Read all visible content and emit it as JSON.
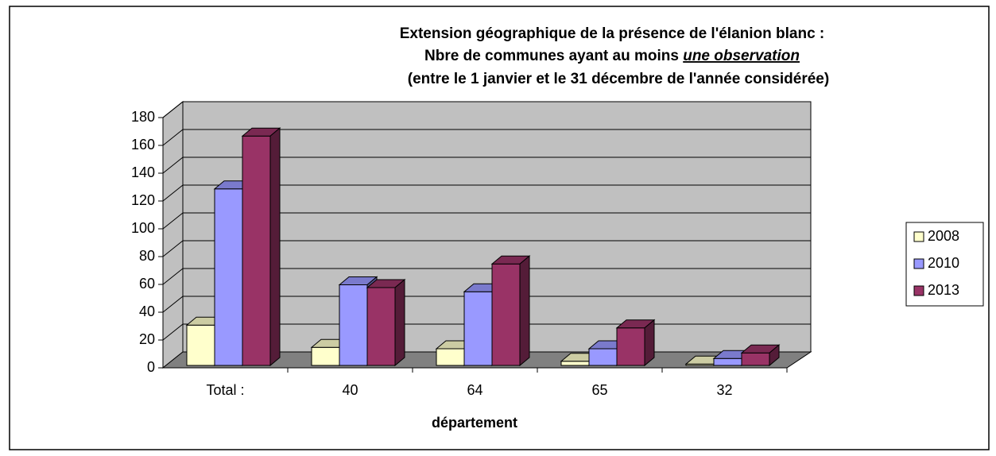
{
  "chart_data": {
    "type": "bar3d",
    "title": [
      "Extension géographique de la présence de l'élanion blanc :",
      "Nbre de communes ayant au moins",
      "(entre le 1 janvier et le 31 décembre de l'année considérée)"
    ],
    "title_emphasis": "une observation",
    "x_label": "département",
    "categories": [
      "Total :",
      "40",
      "64",
      "65",
      "32"
    ],
    "series": [
      {
        "name": "2008",
        "color": "#ffffcc",
        "values": [
          29,
          13,
          12,
          3,
          1
        ]
      },
      {
        "name": "2010",
        "color": "#9999ff",
        "values": [
          127,
          58,
          53,
          12,
          5
        ]
      },
      {
        "name": "2013",
        "color": "#993366",
        "values": [
          165,
          56,
          73,
          27,
          9
        ]
      }
    ],
    "ylim": [
      0,
      180
    ],
    "yticks": [
      0,
      20,
      40,
      60,
      80,
      100,
      120,
      140,
      160,
      180
    ],
    "grid": true,
    "legend": "right"
  }
}
